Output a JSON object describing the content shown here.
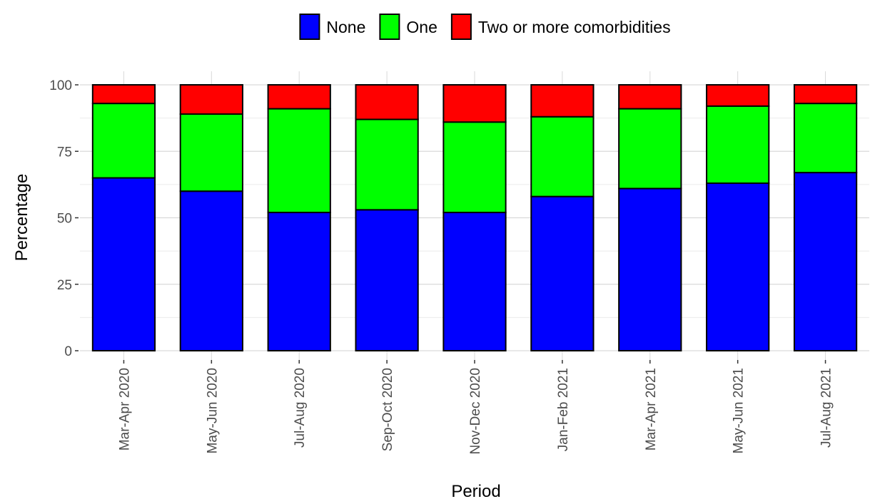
{
  "chart_data": {
    "type": "stacked_bar",
    "x_label": "Period",
    "y_label": "Percentage",
    "categories": [
      "Mar-Apr 2020",
      "May-Jun 2020",
      "Jul-Aug 2020",
      "Sep-Oct 2020",
      "Nov-Dec 2020",
      "Jan-Feb 2021",
      "Mar-Apr 2021",
      "May-Jun 2021",
      "Jul-Aug 2021"
    ],
    "series": [
      {
        "name": "None",
        "color": "#0000ff",
        "values": [
          65,
          60,
          52,
          53,
          52,
          58,
          61,
          63,
          67
        ]
      },
      {
        "name": "One",
        "color": "#00ff00",
        "values": [
          28,
          29,
          39,
          34,
          34,
          30,
          30,
          29,
          26
        ]
      },
      {
        "name": "Two or more comorbidities",
        "color": "#ff0000",
        "values": [
          7,
          11,
          9,
          13,
          14,
          12,
          9,
          8,
          7
        ]
      }
    ],
    "ylim": [
      0,
      100
    ],
    "yticks": [
      0,
      25,
      50,
      75,
      100
    ],
    "grid": true,
    "legend": "top"
  }
}
